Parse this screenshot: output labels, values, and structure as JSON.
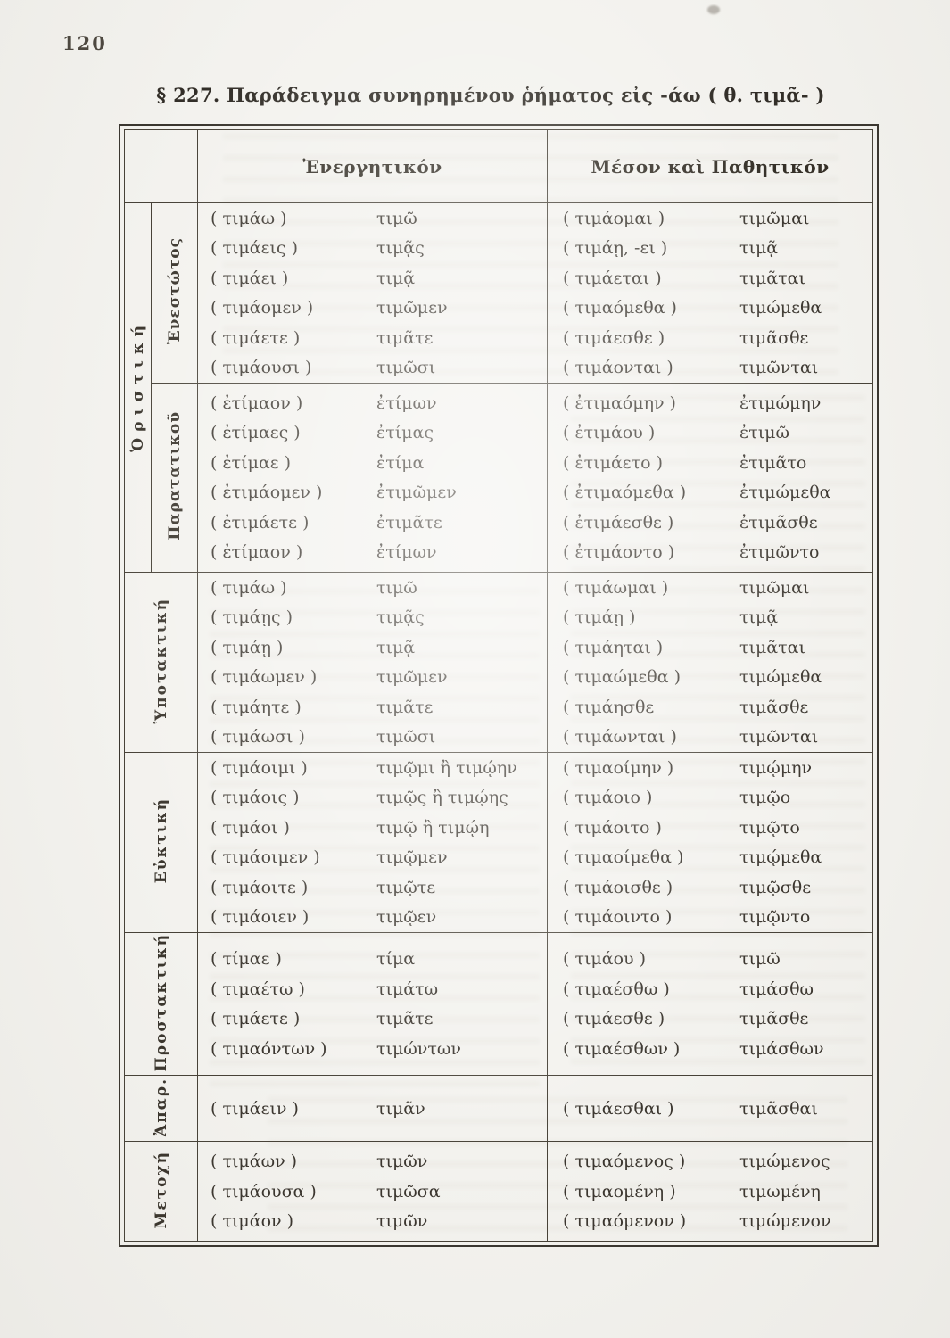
{
  "page_number": "120",
  "title": "§ 227. Παράδειγμα συνηρημένου ῥήματος εἰς -άω ( θ. τιμᾶ- )",
  "table": {
    "headers": {
      "active": "Ἐνεργητικόν",
      "middle_passive": "Μέσον καὶ Παθητικόν"
    },
    "sections": [
      {
        "mood": "Ὁριστική",
        "tenses": [
          {
            "tense": "Ἐνεστώτος",
            "active": [
              {
                "u": "( τιμάω )",
                "c": "τιμῶ"
              },
              {
                "u": "( τιμάεις )",
                "c": "τιμᾷς"
              },
              {
                "u": "( τιμάει )",
                "c": "τιμᾷ"
              },
              {
                "u": "( τιμάομεν )",
                "c": "τιμῶμεν"
              },
              {
                "u": "( τιμάετε )",
                "c": "τιμᾶτε"
              },
              {
                "u": "( τιμάουσι )",
                "c": "τιμῶσι"
              }
            ],
            "middle_passive": [
              {
                "u": "( τιμάομαι )",
                "c": "τιμῶμαι"
              },
              {
                "u": "( τιμάῃ, -ει )",
                "c": "τιμᾷ"
              },
              {
                "u": "( τιμάεται )",
                "c": "τιμᾶται"
              },
              {
                "u": "( τιμαόμεθα )",
                "c": "τιμώμεθα"
              },
              {
                "u": "( τιμάεσθε )",
                "c": "τιμᾶσθε"
              },
              {
                "u": "( τιμάονται )",
                "c": "τιμῶνται"
              }
            ]
          },
          {
            "tense": "Παρατατικοῦ",
            "active": [
              {
                "u": "( ἐτίμαον )",
                "c": "ἐτίμων"
              },
              {
                "u": "( ἐτίμαες )",
                "c": "ἐτίμας"
              },
              {
                "u": "( ἐτίμαε )",
                "c": "ἐτίμα"
              },
              {
                "u": "( ἐτιμάομεν )",
                "c": "ἐτιμῶμεν"
              },
              {
                "u": "( ἐτιμάετε )",
                "c": "ἐτιμᾶτε"
              },
              {
                "u": "( ἐτίμαον )",
                "c": "ἐτίμων"
              }
            ],
            "middle_passive": [
              {
                "u": "( ἐτιμαόμην )",
                "c": "ἐτιμώμην"
              },
              {
                "u": "( ἐτιμάου )",
                "c": "ἐτιμῶ"
              },
              {
                "u": "( ἐτιμάετο )",
                "c": "ἐτιμᾶτο"
              },
              {
                "u": "( ἐτιμαόμεθα )",
                "c": "ἐτιμώμεθα"
              },
              {
                "u": "( ἐτιμάεσθε )",
                "c": "ἐτιμᾶσθε"
              },
              {
                "u": "( ἐτιμάοντο )",
                "c": "ἐτιμῶντο"
              }
            ]
          }
        ]
      },
      {
        "mood": "Ὑποτακτική",
        "active": [
          {
            "u": "( τιμάω )",
            "c": "τιμῶ"
          },
          {
            "u": "( τιμάῃς )",
            "c": "τιμᾷς"
          },
          {
            "u": "( τιμάῃ )",
            "c": "τιμᾷ"
          },
          {
            "u": "( τιμάωμεν )",
            "c": "τιμῶμεν"
          },
          {
            "u": "( τιμάητε )",
            "c": "τιμᾶτε"
          },
          {
            "u": "( τιμάωσι )",
            "c": "τιμῶσι"
          }
        ],
        "middle_passive": [
          {
            "u": "( τιμάωμαι )",
            "c": "τιμῶμαι"
          },
          {
            "u": "( τιμάῃ )",
            "c": "τιμᾷ"
          },
          {
            "u": "( τιμάηται )",
            "c": "τιμᾶται"
          },
          {
            "u": "( τιμαώμεθα )",
            "c": "τιμώμεθα"
          },
          {
            "u": "( τιμάησθε",
            "c": "τιμᾶσθε"
          },
          {
            "u": "( τιμάωνται )",
            "c": "τιμῶνται"
          }
        ]
      },
      {
        "mood": "Εὐκτική",
        "active": [
          {
            "u": "( τιμάοιμι )",
            "c": "τιμῷμι ἢ τιμῴην"
          },
          {
            "u": "( τιμάοις )",
            "c": "τιμῷς ἢ τιμῴης"
          },
          {
            "u": "( τιμάοι )",
            "c": "τιμῷ ἢ τιμῴη"
          },
          {
            "u": "( τιμάοιμεν )",
            "c": "τιμῷμεν"
          },
          {
            "u": "( τιμάοιτε )",
            "c": "τιμῷτε"
          },
          {
            "u": "( τιμάοιεν )",
            "c": "τιμῷεν"
          }
        ],
        "middle_passive": [
          {
            "u": "( τιμαοίμην )",
            "c": "τιμῴμην"
          },
          {
            "u": "( τιμάοιο )",
            "c": "τιμῷο"
          },
          {
            "u": "( τιμάοιτο )",
            "c": "τιμῷτο"
          },
          {
            "u": "( τιμαοίμεθα )",
            "c": "τιμῴμεθα"
          },
          {
            "u": "( τιμάοισθε )",
            "c": "τιμῷσθε"
          },
          {
            "u": "( τιμάοιντο )",
            "c": "τιμῷντο"
          }
        ]
      },
      {
        "mood": "Προστακτική",
        "active": [
          {
            "u": "( τίμαε )",
            "c": "τίμα"
          },
          {
            "u": "( τιμαέτω )",
            "c": "τιμάτω"
          },
          {
            "u": "( τιμάετε )",
            "c": "τιμᾶτε"
          },
          {
            "u": "( τιμαόντων )",
            "c": "τιμώντων"
          }
        ],
        "middle_passive": [
          {
            "u": "( τιμάου )",
            "c": "τιμῶ"
          },
          {
            "u": "( τιμαέσθω )",
            "c": "τιμάσθω"
          },
          {
            "u": "( τιμάεσθε )",
            "c": "τιμᾶσθε"
          },
          {
            "u": "( τιμαέσθων )",
            "c": "τιμάσθων"
          }
        ]
      },
      {
        "mood": "Ἀπαρ.",
        "active": [
          {
            "u": "( τιμάειν )",
            "c": "τιμᾶν"
          }
        ],
        "middle_passive": [
          {
            "u": "( τιμάεσθαι )",
            "c": "τιμᾶσθαι"
          }
        ]
      },
      {
        "mood": "Μετοχή",
        "active": [
          {
            "u": "( τιμάων )",
            "c": "τιμῶν"
          },
          {
            "u": "( τιμάουσα )",
            "c": "τιμῶσα"
          },
          {
            "u": "( τιμάον )",
            "c": "τιμῶν"
          }
        ],
        "middle_passive": [
          {
            "u": "( τιμαόμενος )",
            "c": "τιμώμενος"
          },
          {
            "u": "( τιμαομένη )",
            "c": "τιμωμένη"
          },
          {
            "u": "( τιμαόμενον )",
            "c": "τιμώμενον"
          }
        ]
      }
    ]
  }
}
